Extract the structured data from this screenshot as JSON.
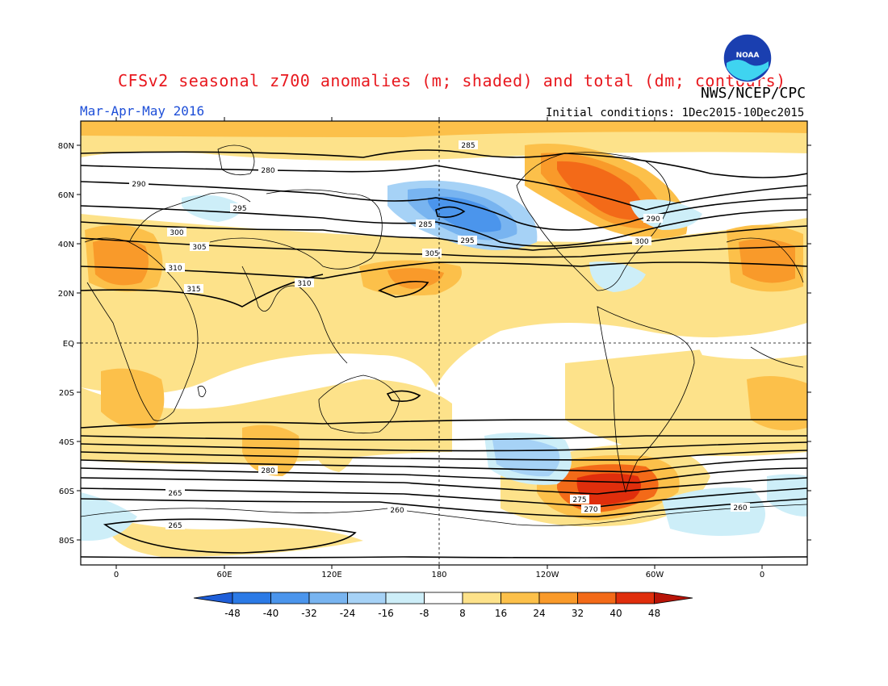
{
  "title": "CFSv2 seasonal z700 anomalies (m; shaded) and total (dm; contours)",
  "agency": "NWS/NCEP/CPC",
  "season": "Mar-Apr-May 2016",
  "initial_conditions": "Initial conditions: 1Dec2015-10Dec2015",
  "logo_text": "NOAA",
  "lat_labels": [
    "80N",
    "60N",
    "40N",
    "20N",
    "EQ",
    "20S",
    "40S",
    "60S",
    "80S"
  ],
  "lon_labels": [
    "0",
    "60E",
    "120E",
    "180",
    "120W",
    "60W",
    "0"
  ],
  "colorbar": {
    "ticks": [
      "-48",
      "-40",
      "-32",
      "-24",
      "-16",
      "-8",
      "8",
      "16",
      "24",
      "32",
      "40",
      "48"
    ],
    "colors": [
      "#1e5ed8",
      "#2b7ae6",
      "#4b95ec",
      "#78b4f0",
      "#a6d2f6",
      "#cdeef8",
      "#ffffff",
      "#fde28a",
      "#fcc04a",
      "#f99a2a",
      "#f36a18",
      "#e02e0c",
      "#b81408"
    ]
  },
  "contour_labels": [
    "285",
    "280",
    "290",
    "295",
    "300",
    "305",
    "310",
    "315",
    "310",
    "305",
    "300",
    "295",
    "290",
    "285",
    "280",
    "275",
    "270",
    "265",
    "260",
    "265",
    "260"
  ]
}
